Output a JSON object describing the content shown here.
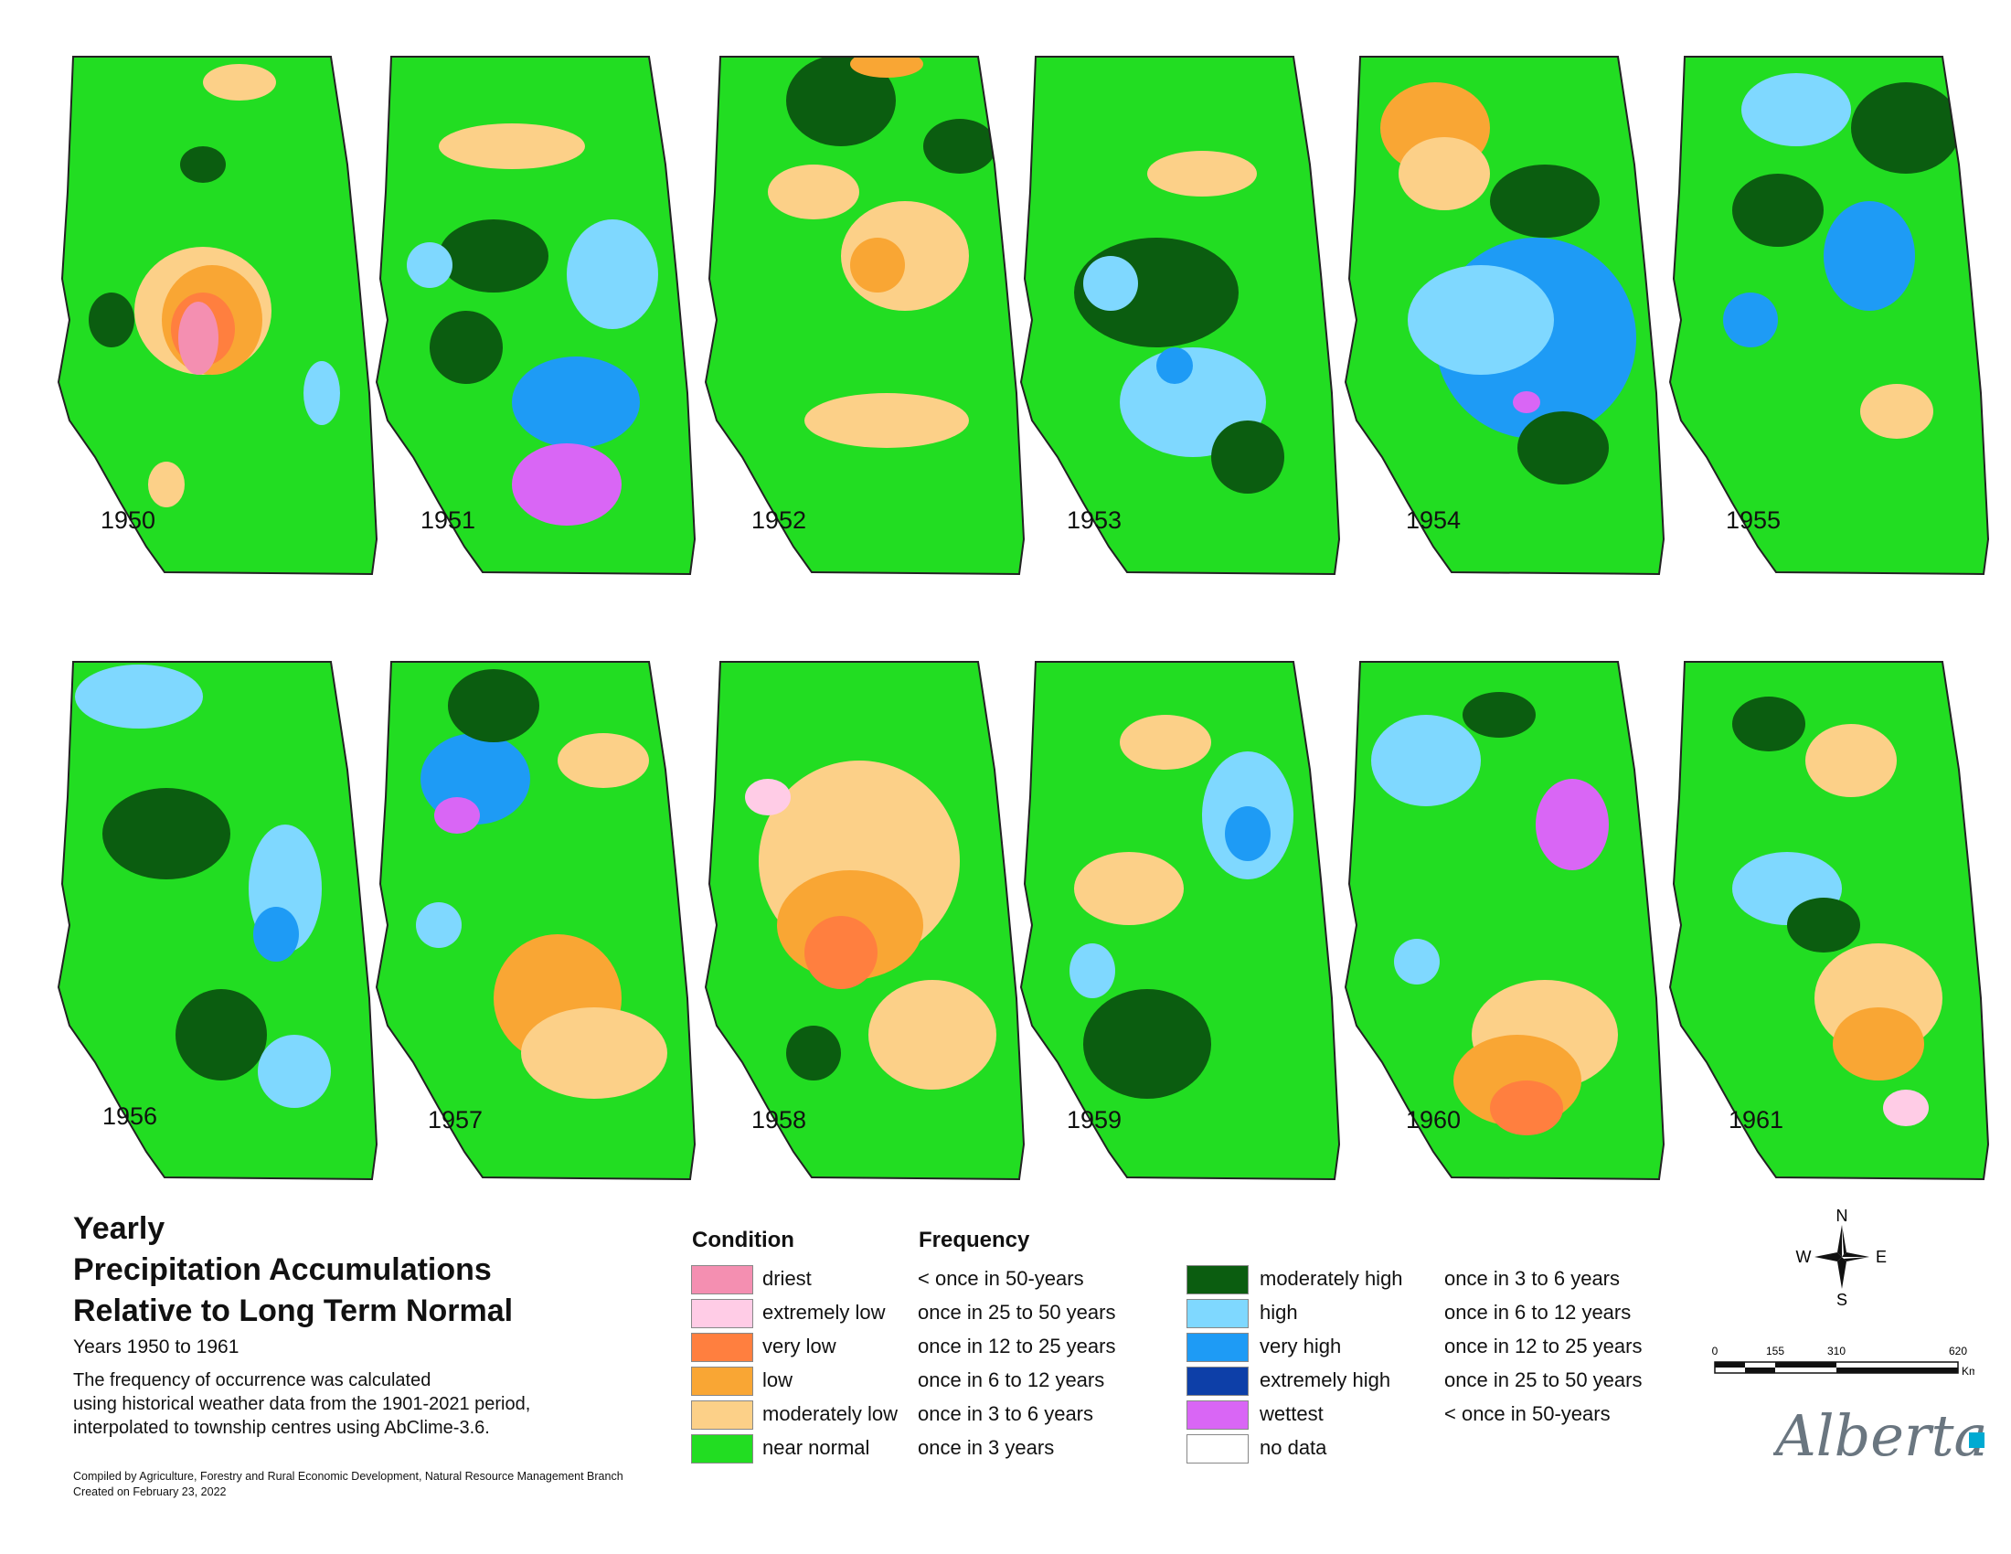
{
  "maps": {
    "years": [
      "1950",
      "1951",
      "1952",
      "1953",
      "1954",
      "1955",
      "1956",
      "1957",
      "1958",
      "1959",
      "1960",
      "1961"
    ]
  },
  "title": {
    "line1": "Yearly",
    "line2": "Precipitation Accumulations",
    "line3": "Relative to Long Term Normal"
  },
  "years_text": "Years 1950 to 1961",
  "description": {
    "line1": "The frequency of occurrence was calculated",
    "line2": "using historical weather data from the 1901-2021 period,",
    "line3": "interpolated to township centres using AbClime-3.6."
  },
  "credits": {
    "line1": "Compiled by Agriculture, Forestry and Rural Economic Development, Natural Resource Management Branch",
    "line2": "Created on February 23, 2022"
  },
  "legend": {
    "condition_header": "Condition",
    "frequency_header": "Frequency",
    "left": [
      {
        "condition": "driest",
        "frequency": "< once in 50-years",
        "color": "#f48fb1"
      },
      {
        "condition": "extremely low",
        "frequency": "once in 25 to 50 years",
        "color": "#ffcce6"
      },
      {
        "condition": "very low",
        "frequency": "once in 12 to 25 years",
        "color": "#ff7f3f"
      },
      {
        "condition": "low",
        "frequency": "once in 6 to 12 years",
        "color": "#f9a634"
      },
      {
        "condition": "moderately low",
        "frequency": "once in 3 to 6 years",
        "color": "#fcd088"
      },
      {
        "condition": "near normal",
        "frequency": "once in 3 years",
        "color": "#22dd22"
      }
    ],
    "right": [
      {
        "condition": "moderately high",
        "frequency": "once in 3 to 6 years",
        "color": "#0b5d10"
      },
      {
        "condition": "high",
        "frequency": "once in 6 to 12 years",
        "color": "#7fd8ff"
      },
      {
        "condition": "very high",
        "frequency": "once in 12 to 25 years",
        "color": "#1e9bf5"
      },
      {
        "condition": "extremely high",
        "frequency": "once in 25 to 50 years",
        "color": "#0d3fa8"
      },
      {
        "condition": "wettest",
        "frequency": "< once in 50-years",
        "color": "#d966f5"
      },
      {
        "condition": "no data",
        "frequency": "",
        "color": "#ffffff"
      }
    ]
  },
  "compass": {
    "n": "N",
    "s": "S",
    "e": "E",
    "w": "W"
  },
  "scale": {
    "ticks": [
      "0",
      "155",
      "310",
      "620"
    ],
    "unit": "Km"
  },
  "logo": {
    "text": "Alberta"
  }
}
